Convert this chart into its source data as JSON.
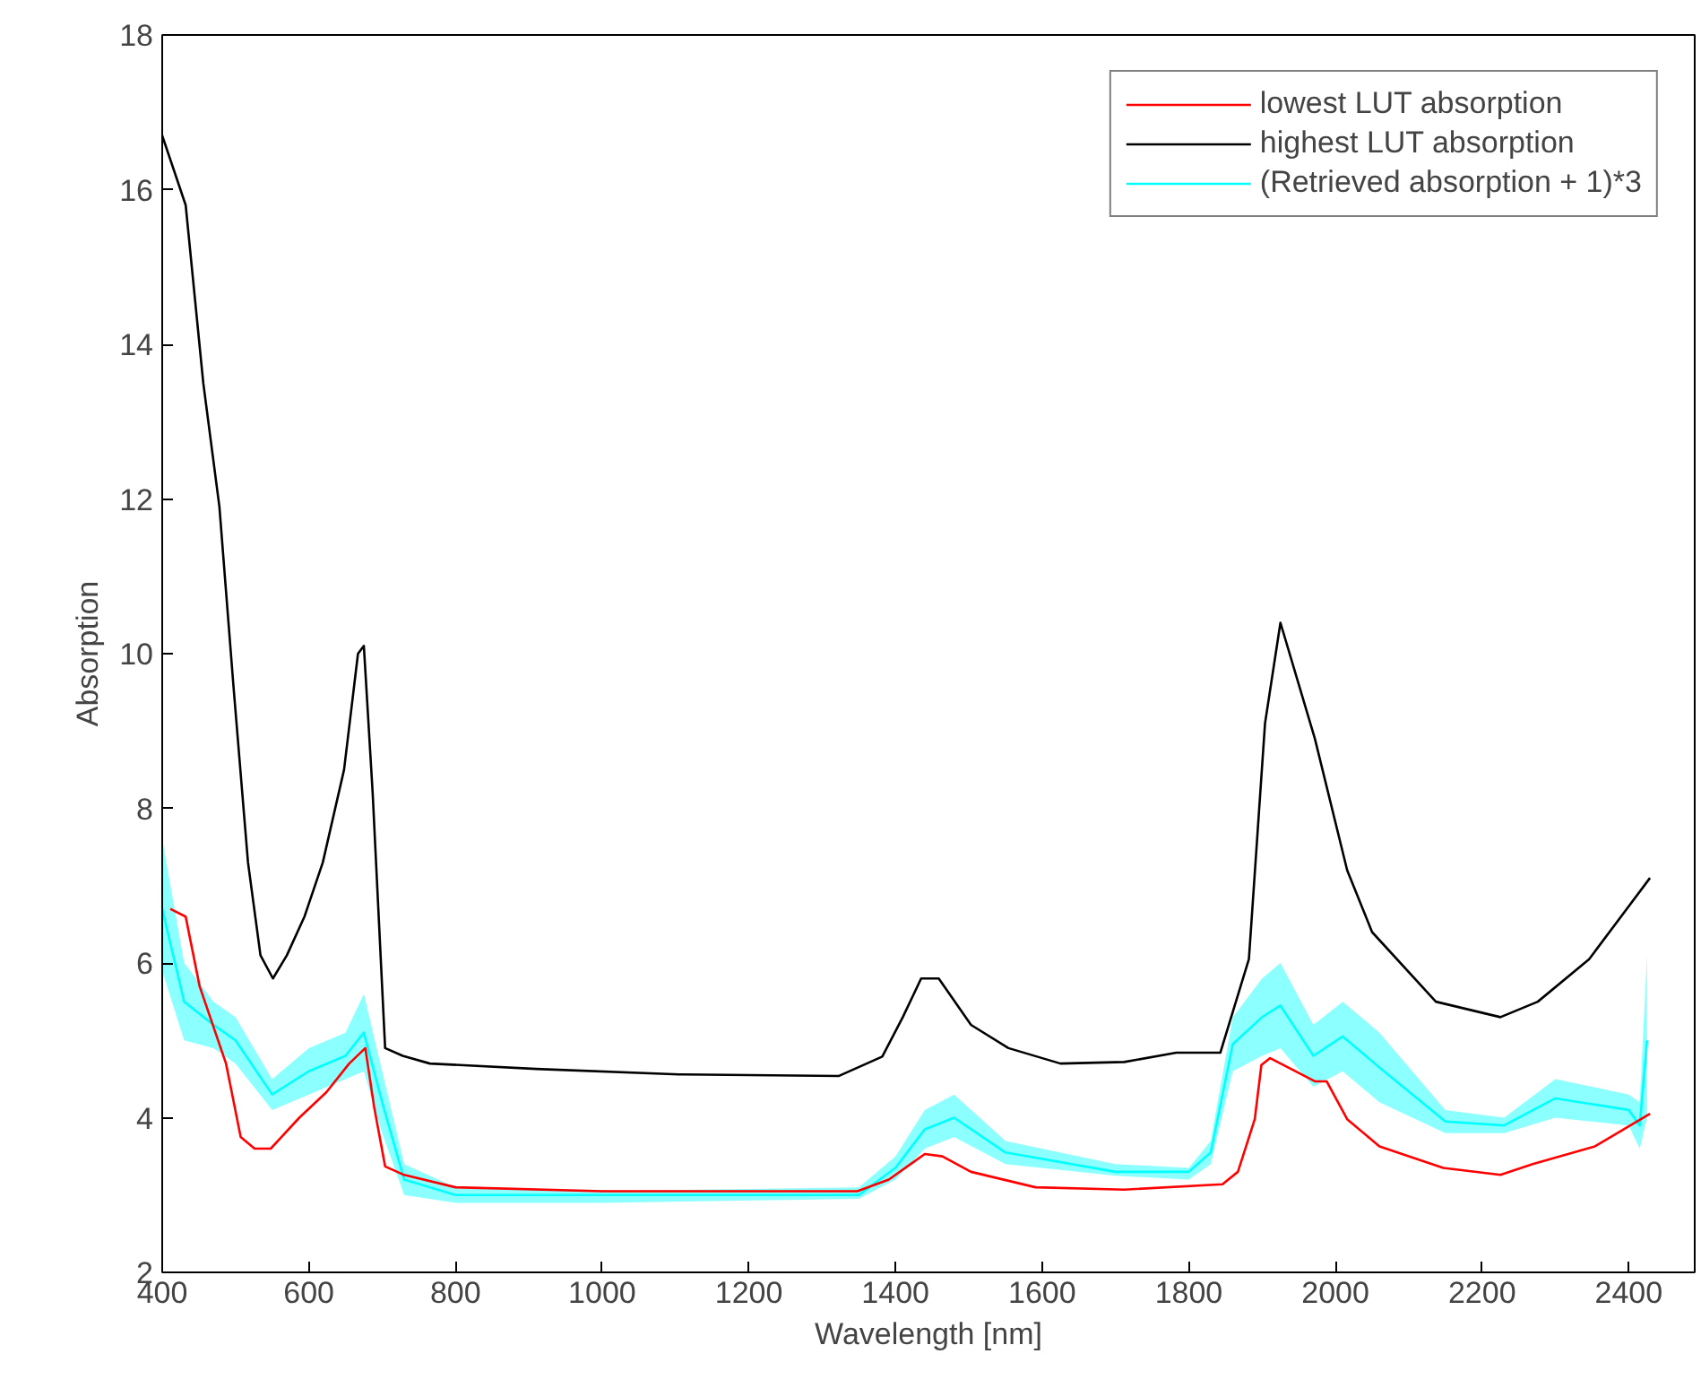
{
  "chart_data": {
    "type": "line",
    "xlabel": "Wavelength [nm]",
    "ylabel": "Absorption",
    "xlim": [
      400,
      2490
    ],
    "xticks": [
      400,
      600,
      800,
      1000,
      1200,
      1400,
      1600,
      1800,
      2000,
      2200,
      2400
    ],
    "ylim": [
      2,
      18
    ],
    "yticks": [
      2,
      4,
      6,
      8,
      10,
      12,
      14,
      16,
      18
    ],
    "grid": false,
    "legend": "top right",
    "marker": "none",
    "line_style": "solid",
    "series": [
      {
        "name": "lowest LUT absorption",
        "color": "#ff0000",
        "x": [
          411,
          432,
          451,
          487,
          507,
          526,
          548,
          587,
          624,
          655,
          677,
          689,
          704,
          730,
          800,
          1000,
          1200,
          1348,
          1391,
          1440,
          1464,
          1503,
          1591,
          1712,
          1846,
          1867,
          1890,
          1899,
          1911,
          1972,
          1988,
          2016,
          2060,
          2147,
          2225,
          2269,
          2354,
          2429
        ],
        "values": [
          6.7,
          6.6,
          5.7,
          4.7,
          3.75,
          3.6,
          3.6,
          4.0,
          4.33,
          4.7,
          4.9,
          4.14,
          3.37,
          3.26,
          3.1,
          3.05,
          3.05,
          3.05,
          3.2,
          3.53,
          3.5,
          3.3,
          3.1,
          3.07,
          3.14,
          3.3,
          3.98,
          4.68,
          4.77,
          4.47,
          4.47,
          3.98,
          3.63,
          3.35,
          3.26,
          3.4,
          3.63,
          4.05
        ]
      },
      {
        "name": "highest LUT absorption",
        "color": "#000000",
        "x": [
          400,
          432,
          456,
          478,
          497,
          517,
          534,
          551,
          570,
          594,
          619,
          648,
          667,
          675,
          687,
          704,
          728,
          765,
          910,
          1105,
          1323,
          1382,
          1410,
          1435,
          1459,
          1503,
          1554,
          1625,
          1712,
          1783,
          1843,
          1882,
          1904,
          1925,
          1972,
          2016,
          2050,
          2137,
          2225,
          2276,
          2346,
          2429
        ],
        "values": [
          16.7,
          15.8,
          13.5,
          11.9,
          9.6,
          7.3,
          6.1,
          5.8,
          6.1,
          6.6,
          7.3,
          8.5,
          10.0,
          10.1,
          8.2,
          4.9,
          4.8,
          4.7,
          4.63,
          4.56,
          4.54,
          4.79,
          5.3,
          5.8,
          5.8,
          5.2,
          4.9,
          4.7,
          4.72,
          4.84,
          4.84,
          6.05,
          9.1,
          10.4,
          8.9,
          7.2,
          6.4,
          5.5,
          5.3,
          5.5,
          6.05,
          7.1
        ]
      },
      {
        "name": "(Retrieved absorption + 1)*3",
        "color": "#00ffff",
        "x": [
          400,
          430,
          470,
          500,
          550,
          600,
          650,
          675,
          700,
          730,
          800,
          1000,
          1350,
          1400,
          1440,
          1480,
          1550,
          1700,
          1800,
          1830,
          1860,
          1900,
          1925,
          1970,
          2010,
          2060,
          2150,
          2230,
          2300,
          2400,
          2415,
          2425
        ],
        "lower": [
          5.9,
          5.0,
          4.9,
          4.7,
          4.1,
          4.3,
          4.5,
          4.6,
          3.8,
          3.0,
          2.9,
          2.9,
          2.95,
          3.2,
          3.6,
          3.75,
          3.4,
          3.25,
          3.2,
          3.4,
          4.6,
          4.8,
          4.9,
          4.4,
          4.6,
          4.2,
          3.8,
          3.8,
          4.0,
          3.9,
          3.6,
          4.0
        ],
        "upper": [
          7.6,
          6.0,
          5.5,
          5.3,
          4.5,
          4.9,
          5.1,
          5.6,
          4.6,
          3.4,
          3.1,
          3.05,
          3.1,
          3.5,
          4.1,
          4.3,
          3.7,
          3.4,
          3.35,
          3.7,
          5.3,
          5.8,
          6.0,
          5.2,
          5.5,
          5.1,
          4.1,
          4.0,
          4.5,
          4.3,
          4.2,
          6.1
        ],
        "values": [
          6.7,
          5.5,
          5.2,
          5.0,
          4.3,
          4.6,
          4.8,
          5.1,
          4.2,
          3.2,
          3.0,
          3.0,
          3.0,
          3.35,
          3.85,
          4.0,
          3.55,
          3.3,
          3.3,
          3.55,
          4.95,
          5.3,
          5.45,
          4.8,
          5.05,
          4.65,
          3.95,
          3.9,
          4.25,
          4.1,
          3.9,
          5.0
        ]
      }
    ]
  }
}
